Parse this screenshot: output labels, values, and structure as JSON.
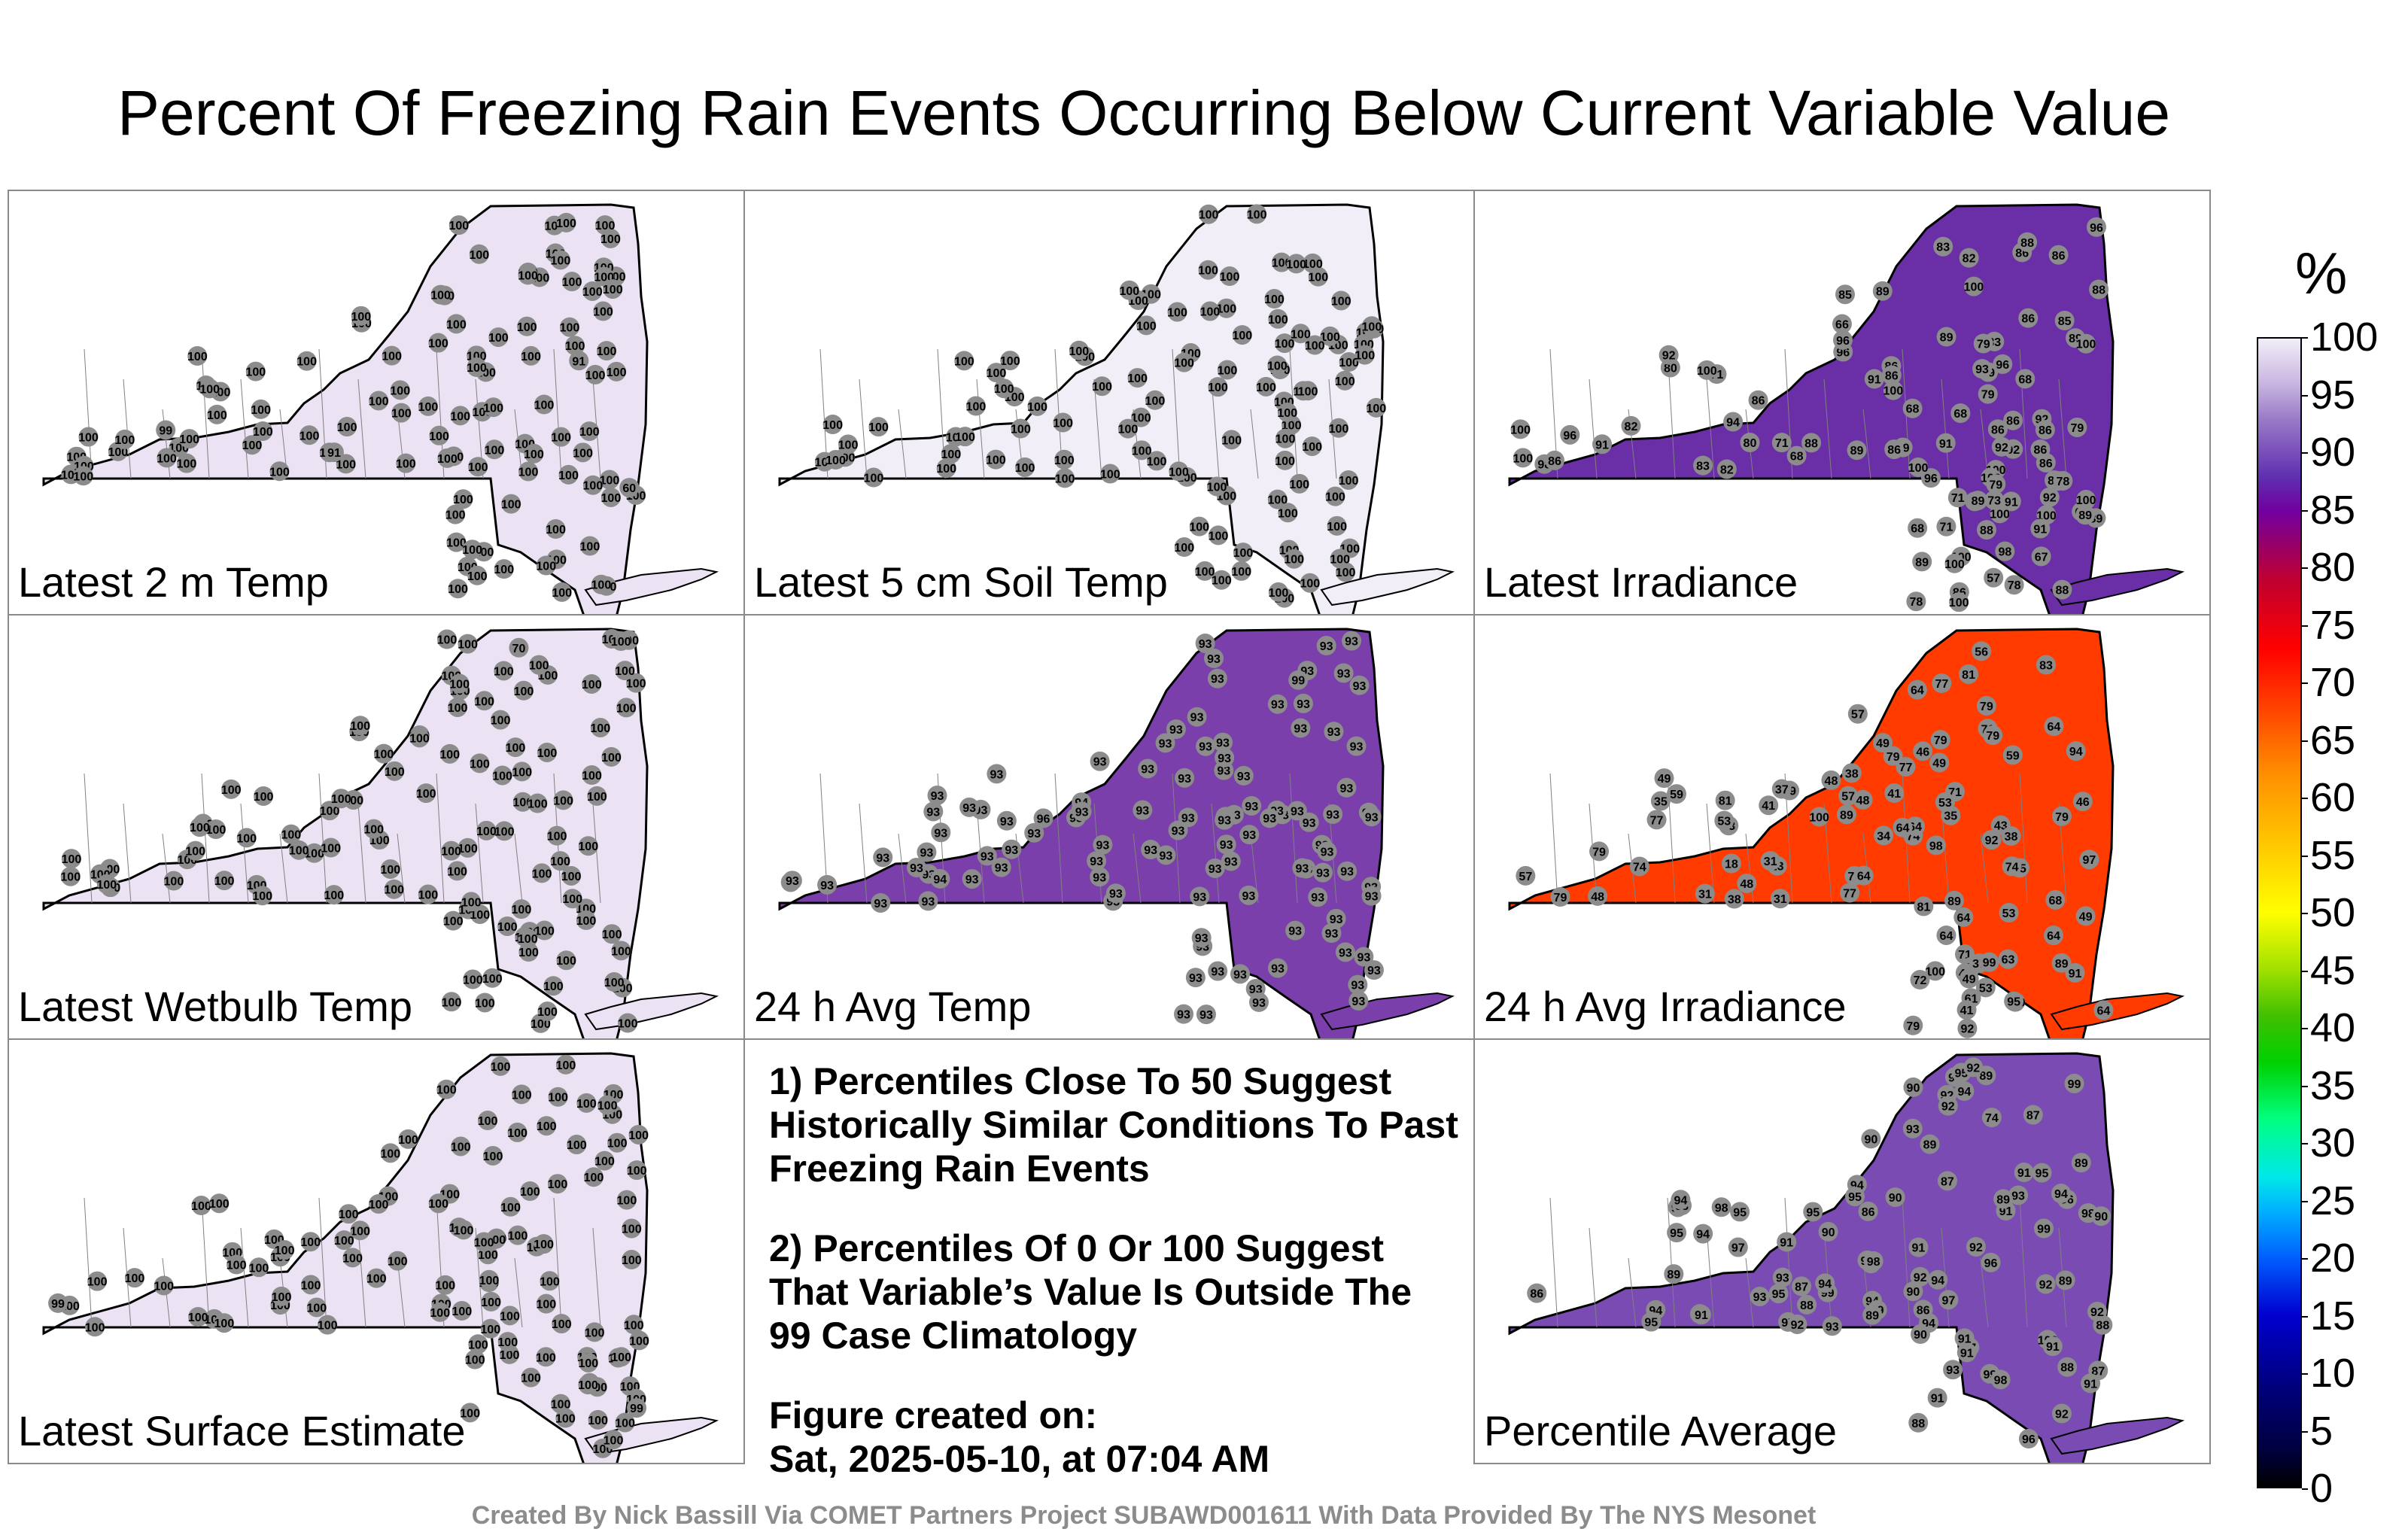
{
  "title": "Percent Of Freezing Rain Events Occurring Below Current Variable Value",
  "panels": [
    {
      "label": "Latest 2 m Temp",
      "values": [
        100,
        100,
        100,
        100,
        100,
        100,
        100,
        100,
        100,
        100,
        100,
        100,
        100,
        100,
        100,
        100,
        100,
        100,
        100,
        100,
        100,
        100,
        100,
        100,
        100,
        100,
        100,
        100,
        100,
        100,
        100,
        100,
        100,
        100,
        100,
        100,
        100,
        100,
        100,
        100,
        100,
        100,
        100,
        100,
        100,
        100,
        100,
        100,
        100,
        100,
        100,
        100,
        100,
        100,
        100,
        100,
        100,
        100,
        100,
        100,
        100,
        100,
        100,
        100,
        100,
        100,
        100,
        100,
        100,
        100,
        100,
        100,
        100,
        100,
        100,
        100,
        100,
        100,
        100,
        100,
        100,
        100,
        100,
        60,
        91,
        99,
        91,
        100,
        100,
        100,
        100,
        100,
        100,
        100,
        100,
        100,
        100,
        100,
        100,
        100,
        100,
        100,
        100,
        100,
        100,
        100,
        100,
        100
      ]
    },
    {
      "label": "Latest 5 cm Soil Temp",
      "values": [
        100,
        100,
        100,
        100,
        100,
        100,
        100,
        100,
        100,
        100,
        100,
        100,
        100,
        100,
        100,
        100,
        100,
        100,
        100,
        100,
        100,
        100,
        100,
        100,
        100,
        100,
        100,
        100,
        100,
        100,
        100,
        100,
        100,
        100,
        100,
        100,
        100,
        100,
        100,
        100,
        100,
        100,
        100,
        100,
        100,
        100,
        100,
        100,
        100,
        100,
        100,
        100,
        100,
        100,
        100,
        100,
        100,
        100,
        100,
        100,
        100,
        100,
        100,
        100,
        100,
        100,
        100,
        100,
        100,
        100,
        100,
        100,
        100,
        100,
        100,
        100,
        100,
        100,
        100,
        100,
        100,
        100,
        100,
        100,
        100,
        100,
        100,
        100,
        100,
        100,
        100,
        100,
        100,
        100,
        100,
        100,
        100,
        100,
        100,
        100,
        100,
        100,
        100,
        100,
        100,
        100,
        100,
        100
      ]
    },
    {
      "label": "Latest Irradiance",
      "values": [
        92,
        86,
        68,
        86,
        89,
        79,
        86,
        69,
        91,
        92,
        70,
        57,
        68,
        85,
        71,
        86,
        92,
        96,
        89,
        71,
        68,
        71,
        96,
        89,
        66,
        88,
        83,
        83,
        80,
        71,
        86,
        88,
        80,
        92,
        79,
        86,
        82,
        91,
        86,
        82,
        96,
        89,
        90,
        98,
        100,
        100,
        100,
        100,
        79,
        98,
        100,
        96,
        88,
        100,
        100,
        100,
        88,
        86,
        89,
        94,
        83,
        79,
        91,
        68,
        93,
        100,
        86,
        89,
        82,
        91,
        96,
        88,
        86,
        86,
        100,
        100,
        86,
        86,
        86,
        79,
        100,
        85,
        78,
        78,
        67,
        78,
        73,
        68,
        86,
        91,
        89,
        89,
        89,
        100,
        92,
        96,
        100,
        100
      ]
    },
    {
      "label": "Latest Wetbulb Temp",
      "values": [
        100,
        100,
        100,
        100,
        100,
        100,
        100,
        100,
        100,
        100,
        100,
        100,
        100,
        100,
        100,
        100,
        100,
        100,
        100,
        100,
        100,
        100,
        100,
        100,
        100,
        100,
        100,
        100,
        100,
        100,
        100,
        100,
        100,
        100,
        100,
        100,
        100,
        100,
        100,
        100,
        100,
        100,
        100,
        100,
        100,
        100,
        100,
        100,
        100,
        100,
        100,
        100,
        100,
        100,
        100,
        100,
        100,
        100,
        100,
        100,
        100,
        100,
        100,
        100,
        100,
        100,
        100,
        100,
        100,
        100,
        100,
        100,
        100,
        100,
        100,
        100,
        100,
        100,
        100,
        100,
        100,
        100,
        100,
        70,
        100,
        100,
        100,
        100,
        100,
        100,
        100,
        100,
        100,
        100,
        100,
        100,
        100,
        100,
        100,
        100,
        100,
        100,
        100,
        100,
        100,
        100,
        100,
        100
      ]
    },
    {
      "label": "24 h Avg Temp",
      "values": [
        93,
        93,
        93,
        93,
        93,
        93,
        93,
        93,
        93,
        93,
        93,
        93,
        93,
        93,
        93,
        93,
        93,
        93,
        93,
        93,
        93,
        93,
        93,
        93,
        93,
        93,
        93,
        93,
        93,
        93,
        93,
        93,
        93,
        93,
        93,
        93,
        93,
        93,
        93,
        93,
        93,
        93,
        93,
        93,
        93,
        93,
        93,
        93,
        93,
        93,
        93,
        93,
        93,
        93,
        93,
        93,
        93,
        93,
        93,
        93,
        93,
        93,
        93,
        93,
        93,
        93,
        93,
        93,
        93,
        93,
        93,
        93,
        93,
        93,
        93,
        93,
        93,
        93,
        93,
        93,
        93,
        93,
        93,
        93,
        93,
        93,
        93,
        93,
        93,
        93,
        93,
        93,
        93,
        93,
        93,
        93,
        93,
        94,
        96,
        99,
        94,
        93,
        93,
        93,
        93,
        93,
        93,
        93
      ]
    },
    {
      "label": "24 h Avg Irradiance",
      "values": [
        79,
        77,
        71,
        71,
        79,
        77,
        89,
        77,
        79,
        64,
        91,
        77,
        79,
        79,
        74,
        57,
        53,
        48,
        41,
        56,
        48,
        48,
        43,
        49,
        89,
        79,
        79,
        71,
        79,
        49,
        38,
        35,
        35,
        73,
        81,
        64,
        53,
        48,
        37,
        23,
        31,
        18,
        49,
        31,
        31,
        35,
        38,
        37,
        46,
        49,
        61,
        79,
        59,
        57,
        74,
        48,
        59,
        64,
        53,
        41,
        79,
        64,
        46,
        64,
        97,
        100,
        92,
        81,
        83,
        94,
        92,
        98,
        100,
        99,
        95,
        64,
        41,
        38,
        64,
        53,
        34,
        64,
        63,
        72,
        77,
        74,
        64,
        49,
        68,
        57,
        81,
        100,
        89
      ]
    },
    {
      "label": "Latest Surface Estimate",
      "values": [
        100,
        100,
        100,
        100,
        100,
        100,
        100,
        100,
        100,
        100,
        100,
        100,
        100,
        100,
        100,
        100,
        100,
        100,
        100,
        100,
        100,
        100,
        100,
        100,
        100,
        100,
        100,
        100,
        100,
        100,
        100,
        100,
        100,
        100,
        100,
        100,
        100,
        100,
        100,
        100,
        100,
        100,
        100,
        100,
        100,
        100,
        100,
        100,
        100,
        100,
        100,
        100,
        100,
        100,
        100,
        100,
        100,
        100,
        100,
        100,
        100,
        100,
        100,
        100,
        100,
        100,
        100,
        100,
        100,
        100,
        100,
        100,
        100,
        100,
        100,
        100,
        100,
        100,
        99,
        100,
        100,
        99,
        100,
        100,
        100,
        100,
        100,
        100,
        100,
        100,
        100,
        100,
        100,
        100,
        100,
        100,
        100,
        100,
        100,
        100,
        100,
        100,
        100,
        100,
        100,
        100,
        100,
        100
      ]
    },
    {
      "label": "Percentile Average",
      "values": [
        95,
        94,
        91,
        93,
        92,
        94,
        93,
        92,
        95,
        93,
        96,
        97,
        95,
        91,
        87,
        88,
        90,
        87,
        86,
        87,
        91,
        92,
        90,
        89,
        74,
        94,
        90,
        89,
        86,
        92,
        89,
        99,
        99,
        99,
        98,
        97,
        95,
        93,
        94,
        91,
        92,
        90,
        93,
        91,
        88,
        88,
        87,
        86,
        99,
        99,
        98,
        97,
        96,
        94,
        89,
        98,
        93,
        95,
        94,
        92,
        91,
        88,
        89,
        90,
        91,
        87,
        89,
        91,
        94,
        91,
        92,
        90,
        94,
        91,
        92,
        95,
        93,
        89,
        90,
        91,
        95,
        92,
        94,
        98,
        94,
        98,
        100,
        96,
        95,
        91,
        90,
        94
      ]
    }
  ],
  "notes": {
    "note1": "1) Percentiles Close To 50 Suggest Historically Similar Conditions To Past Freezing Rain Events",
    "note2": "2) Percentiles Of 0 Or 100 Suggest That Variable’s Value Is Outside The 99 Case Climatology",
    "created_label": "Figure created on:",
    "created_value": "Sat, 2025-05-10, at 07:04 AM"
  },
  "colorbar": {
    "unit": "%",
    "ticks": [
      "100",
      "95",
      "90",
      "85",
      "80",
      "75",
      "70",
      "65",
      "60",
      "55",
      "50",
      "45",
      "40",
      "35",
      "30",
      "25",
      "20",
      "15",
      "10",
      "5",
      "0"
    ]
  },
  "footer": "Created By Nick Bassill Via COMET Partners Project SUBAWD001611 With Data Provided By The NYS Mesonet",
  "colors": {
    "background": "#ffffff",
    "state_outline": "#000000",
    "county_lines": "#808080",
    "station_marker": "#8c8c8c"
  }
}
